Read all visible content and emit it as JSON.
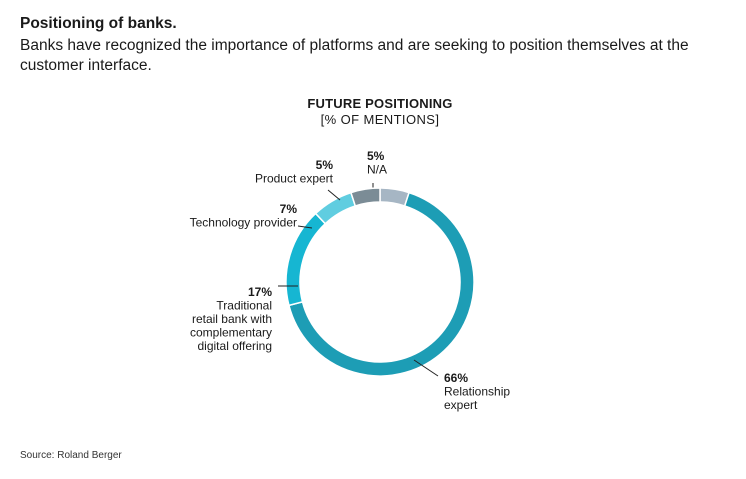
{
  "heading": {
    "title": "Positioning of banks.",
    "subtitle": "Banks have recognized the importance of platforms and are seeking to position themselves at the customer interface."
  },
  "source": "Source: Roland Berger",
  "colors": {
    "relationship": "#1d9db5",
    "traditional": "#16b6d2",
    "technology": "#60cde0",
    "product": "#7b8c96",
    "na": "#a6b6c4",
    "leader": "#222222"
  },
  "chart_data": {
    "type": "pie",
    "title": "FUTURE POSITIONING",
    "subtitle": "[% OF MENTIONS]",
    "slices": [
      {
        "key": "na",
        "value": 5,
        "pct_label": "5%",
        "label_lines": [
          "N/A"
        ]
      },
      {
        "key": "relationship",
        "value": 66,
        "pct_label": "66%",
        "label_lines": [
          "Relationship",
          "expert"
        ]
      },
      {
        "key": "traditional",
        "value": 17,
        "pct_label": "17%",
        "label_lines": [
          "Traditional",
          "retail bank with",
          "complementary",
          "digital offering"
        ]
      },
      {
        "key": "technology",
        "value": 7,
        "pct_label": "7%",
        "label_lines": [
          "Technology provider"
        ]
      },
      {
        "key": "product",
        "value": 5,
        "pct_label": "5%",
        "label_lines": [
          "Product expert"
        ]
      }
    ]
  }
}
